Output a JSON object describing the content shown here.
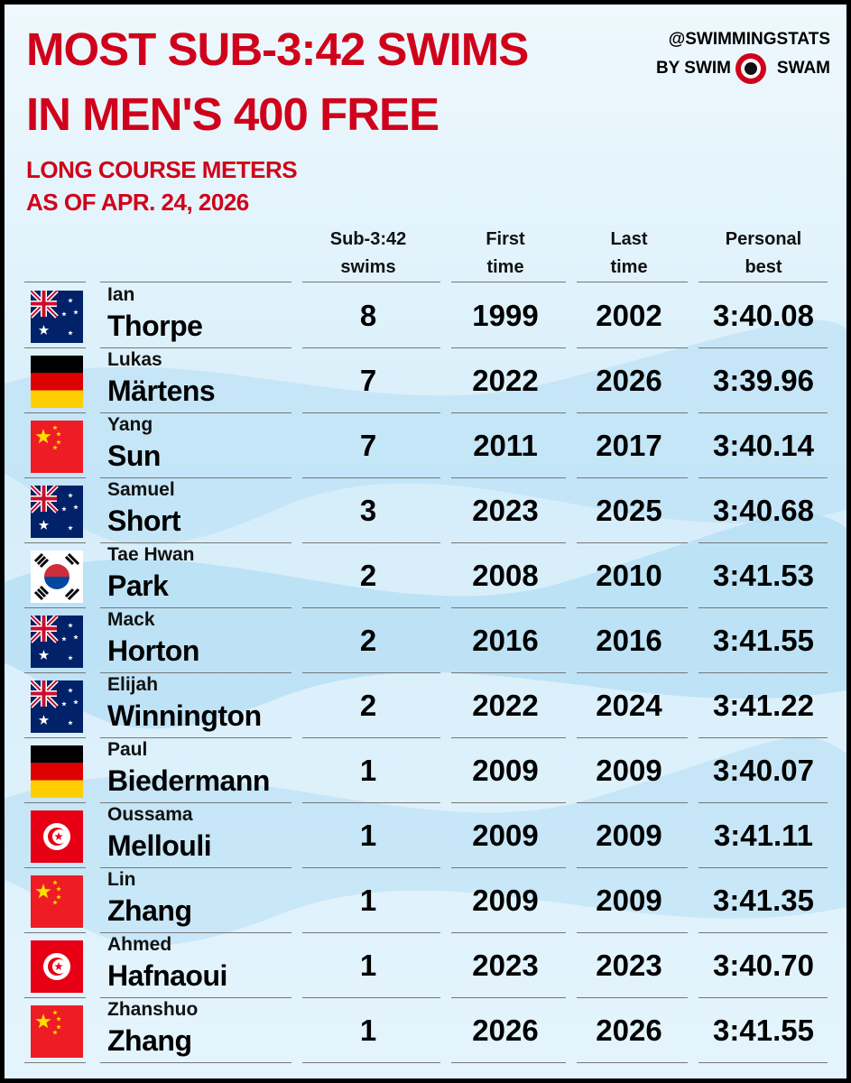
{
  "header": {
    "title_lines": [
      "MOST SUB-3:42 SWIMS",
      "IN MEN'S 400 FREE"
    ],
    "subtitle_lines": [
      "LONG COURSE METERS",
      "AS OF APR. 24, 2026"
    ],
    "brand": {
      "handle": "@SWIMMINGSTATS",
      "by": "BY SWIM",
      "swam": "SWAM"
    }
  },
  "table": {
    "columns": [
      [
        "Sub-3:42",
        "swims"
      ],
      [
        "First",
        "time"
      ],
      [
        "Last",
        "time"
      ],
      [
        "Personal",
        "best"
      ]
    ],
    "rows": [
      [
        "Ian",
        "Thorpe",
        "8",
        "1999",
        "2002",
        "3:40.08"
      ],
      [
        "Lukas",
        "Märtens",
        "7",
        "2022",
        "2026",
        "3:39.96"
      ],
      [
        "Yang",
        "Sun",
        "7",
        "2011",
        "2017",
        "3:40.14"
      ],
      [
        "Samuel",
        "Short",
        "3",
        "2023",
        "2025",
        "3:40.68"
      ],
      [
        "Tae Hwan",
        "Park",
        "2",
        "2008",
        "2010",
        "3:41.53"
      ],
      [
        "Mack",
        "Horton",
        "2",
        "2016",
        "2016",
        "3:41.55"
      ],
      [
        "Elijah",
        "Winnington",
        "2",
        "2022",
        "2024",
        "3:41.22"
      ],
      [
        "Paul",
        "Biedermann",
        "1",
        "2009",
        "2009",
        "3:40.07"
      ],
      [
        "Oussama",
        "Mellouli",
        "1",
        "2009",
        "2009",
        "3:41.11"
      ],
      [
        "Lin",
        "Zhang",
        "1",
        "2009",
        "2009",
        "3:41.35"
      ],
      [
        "Ahmed",
        "Hafnaoui",
        "1",
        "2023",
        "2023",
        "3:40.70"
      ],
      [
        "Zhanshuo",
        "Zhang",
        "1",
        "2026",
        "2026",
        "3:41.55"
      ]
    ]
  }
}
